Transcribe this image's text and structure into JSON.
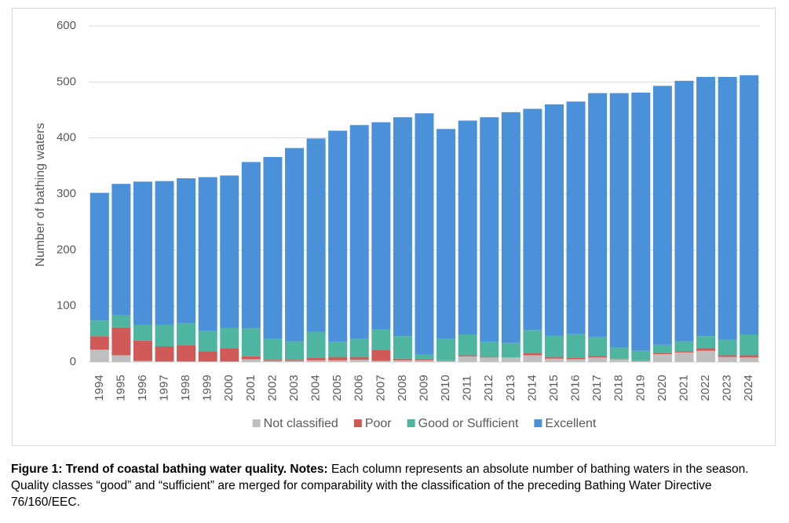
{
  "chart_data": {
    "type": "stacked_bar",
    "y_label": "Number of bathing waters",
    "categories": [
      "1994",
      "1995",
      "1996",
      "1997",
      "1998",
      "1999",
      "2000",
      "2001",
      "2002",
      "2003",
      "2004",
      "2005",
      "2006",
      "2007",
      "2008",
      "2009",
      "2010",
      "2011",
      "2012",
      "2013",
      "2014",
      "2015",
      "2016",
      "2017",
      "2018",
      "2019",
      "2020",
      "2021",
      "2022",
      "2023",
      "2024"
    ],
    "series": [
      {
        "name": "Not classified",
        "color": "#bfbfbf",
        "values": [
          22,
          12,
          2,
          1,
          1,
          1,
          1,
          5,
          2,
          2,
          3,
          3,
          4,
          2,
          3,
          3,
          2,
          10,
          8,
          8,
          12,
          6,
          5,
          8,
          5,
          2,
          14,
          17,
          20,
          9,
          8
        ]
      },
      {
        "name": "Poor",
        "color": "#d05a57",
        "values": [
          24,
          50,
          36,
          27,
          29,
          18,
          24,
          5,
          2,
          2,
          5,
          6,
          5,
          20,
          3,
          2,
          1,
          2,
          1,
          0,
          4,
          3,
          3,
          3,
          1,
          1,
          2,
          2,
          5,
          3,
          4
        ]
      },
      {
        "name": "Good or Sufficient",
        "color": "#4db5a0",
        "values": [
          28,
          21,
          28,
          38,
          40,
          36,
          36,
          50,
          38,
          33,
          46,
          27,
          33,
          36,
          40,
          9,
          39,
          37,
          27,
          26,
          41,
          38,
          42,
          34,
          20,
          17,
          15,
          18,
          21,
          28,
          37
        ]
      },
      {
        "name": "Excellent",
        "color": "#4b91d9",
        "values": [
          228,
          235,
          256,
          257,
          258,
          275,
          272,
          297,
          324,
          345,
          345,
          377,
          381,
          370,
          391,
          430,
          374,
          382,
          401,
          412,
          395,
          413,
          415,
          435,
          454,
          461,
          462,
          465,
          463,
          469,
          463
        ]
      }
    ],
    "ylim": [
      0,
      600
    ],
    "yticks": [
      0,
      100,
      200,
      300,
      400,
      500,
      600
    ],
    "grid": true,
    "legend": "bottom"
  },
  "caption": {
    "bold": "Figure 1: Trend of coastal bathing water quality. Notes:",
    "text": "Each column represents an absolute number of bathing waters in the season. Quality classes “good” and “sufficient” are merged for comparability with the classification of the preceding Bathing Water Directive 76/160/EEC."
  }
}
